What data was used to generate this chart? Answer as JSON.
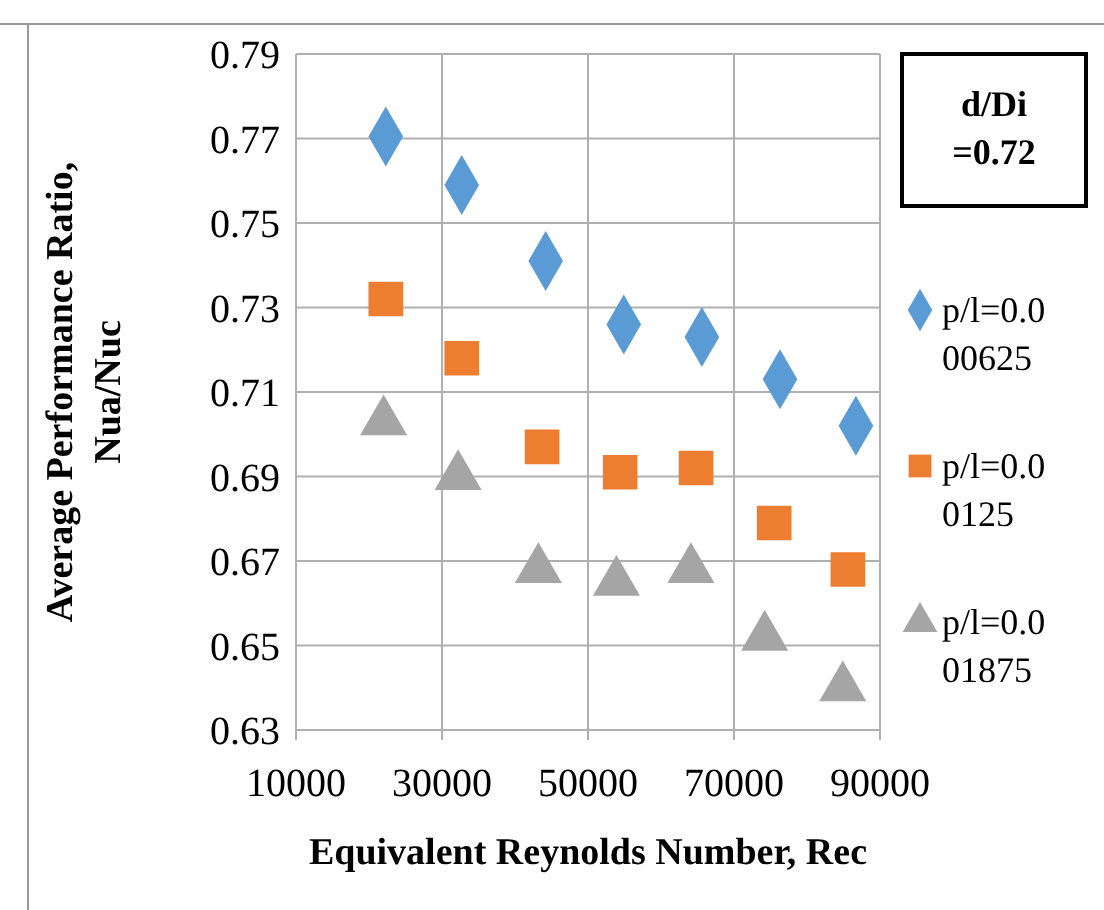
{
  "chart_data": {
    "type": "scatter",
    "xlabel": "Equivalent Reynolds Number, Rec",
    "ylabel": "Average Performance Ratio, Nua/Nuc",
    "annotations": [
      "d/Di =0.72"
    ],
    "xlim": [
      10000,
      90000
    ],
    "xticks": [
      10000,
      30000,
      50000,
      70000,
      90000
    ],
    "ylim": [
      0.63,
      0.79
    ],
    "yticks": [
      0.63,
      0.65,
      0.67,
      0.69,
      0.71,
      0.73,
      0.75,
      0.77,
      0.79
    ],
    "grid": true,
    "legend": "right",
    "series": [
      {
        "name": "p/l=0.000625",
        "color": "#5b9bd5",
        "marker": "diamond",
        "x": [
          22300,
          32700,
          44200,
          54900,
          65600,
          76300,
          86700
        ],
        "values": [
          0.7705,
          0.759,
          0.741,
          0.726,
          0.723,
          0.713,
          0.702
        ]
      },
      {
        "name": "p/l=0.00125",
        "color": "#ed7d31",
        "marker": "square",
        "x": [
          22300,
          32700,
          43700,
          54400,
          64800,
          75500,
          85600
        ],
        "values": [
          0.732,
          0.718,
          0.697,
          0.691,
          0.692,
          0.679,
          0.668
        ]
      },
      {
        "name": "p/l=0.001875",
        "color": "#a5a5a5",
        "marker": "triangle",
        "x": [
          22000,
          32200,
          43200,
          53900,
          64100,
          74200,
          84900
        ],
        "values": [
          0.703,
          0.69,
          0.668,
          0.665,
          0.668,
          0.652,
          0.64
        ]
      }
    ]
  }
}
